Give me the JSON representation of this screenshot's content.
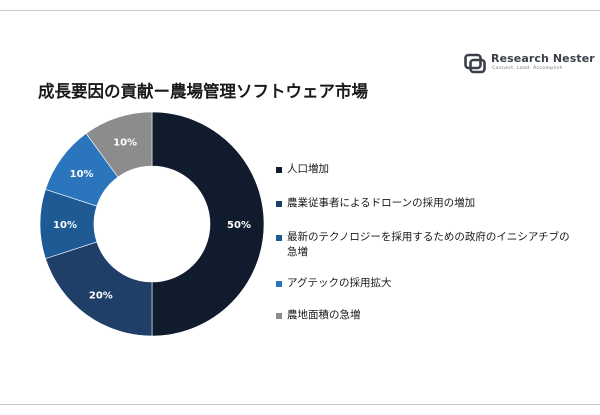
{
  "title": "成長要因の貢献ー農場管理ソフトウェア市場",
  "logo": {
    "name": "Research Nester",
    "tagline": "Connect. Lead. Accomplish"
  },
  "colors": {
    "navy": "#101b2d",
    "dark_blue": "#1f3f68",
    "mid_blue": "#1e5a94",
    "bright_blue": "#2a75bc",
    "gray": "#8c8c8c"
  },
  "chart_data": {
    "type": "pie",
    "donut": true,
    "title": "成長要因の貢献ー農場管理ソフトウェア市場",
    "categories": [
      "人口増加",
      "農業従事者によるドローンの採用の増加",
      "最新のテクノロジーを採用するための政府のイニシアチブの急増",
      "アグテックの採用拡大",
      "農地面積の急増"
    ],
    "values": [
      50,
      20,
      10,
      10,
      10
    ],
    "value_labels": [
      "50%",
      "20%",
      "10%",
      "10%",
      "10%"
    ],
    "colors": [
      "#101b2d",
      "#1f3f68",
      "#1e5a94",
      "#2a75bc",
      "#8c8c8c"
    ],
    "legend_placement": "right"
  }
}
